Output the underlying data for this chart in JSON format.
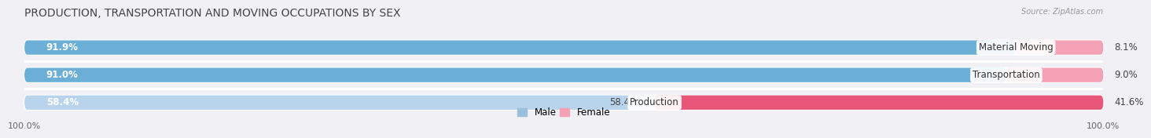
{
  "title": "PRODUCTION, TRANSPORTATION AND MOVING OCCUPATIONS BY SEX",
  "source": "Source: ZipAtlas.com",
  "categories": [
    "Material Moving",
    "Transportation",
    "Production"
  ],
  "male_values": [
    91.9,
    91.0,
    58.4
  ],
  "female_values": [
    8.1,
    9.0,
    41.6
  ],
  "male_color_strong": "#6baed6",
  "male_color_light": "#b8d4ec",
  "female_color_light": "#f4a0b5",
  "female_color_strong": "#e8567a",
  "bar_height": 0.52,
  "bg_bar_color": "#e8e8ee",
  "background_color": "#f0f0f5",
  "title_fontsize": 10,
  "label_fontsize": 8.5,
  "tick_fontsize": 8,
  "legend_male_color": "#9ac0dc",
  "legend_female_color": "#f4a0b5",
  "male_label_color_white": "white",
  "male_label_color_dark": "#444444",
  "female_label_color": "#444444"
}
